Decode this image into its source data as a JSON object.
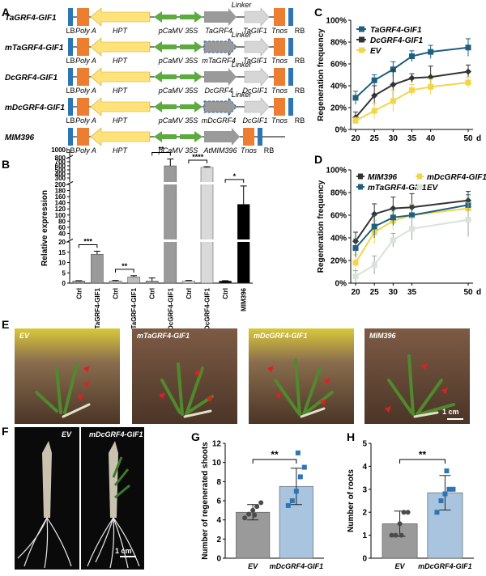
{
  "panels": {
    "A": "A",
    "B": "B",
    "C": "C",
    "D": "D",
    "E": "E",
    "F": "F",
    "G": "G",
    "H": "H"
  },
  "constructs": [
    {
      "name": "TaGRF4-GIF1",
      "has_linker": true,
      "labels": {
        "lb": "LB",
        "polya": "Poly A",
        "hpt": "HPT",
        "p35s": "pCaMV 35S",
        "grf": "TaGRF4",
        "gif": "TaGIF1",
        "tnos": "Tnos",
        "rb": "RB",
        "linker": "Linker"
      }
    },
    {
      "name": "mTaGRF4-GIF1",
      "has_linker": true,
      "labels": {
        "lb": "LB",
        "polya": "Poly A",
        "hpt": "HPT",
        "p35s": "pCaMV 35S",
        "grf": "mTaGRF4",
        "gif": "TaGIF1",
        "tnos": "Tnos",
        "rb": "RB",
        "linker": "Linker"
      }
    },
    {
      "name": "DcGRF4-GIF1",
      "has_linker": true,
      "labels": {
        "lb": "LB",
        "polya": "Poly A",
        "hpt": "HPT",
        "p35s": "pCaMV 35S",
        "grf": "DcGRF4",
        "gif": "DcGIF1",
        "tnos": "Tnos",
        "rb": "RB",
        "linker": "Linker"
      }
    },
    {
      "name": "mDcGRF4-GIF1",
      "has_linker": true,
      "labels": {
        "lb": "LB",
        "polya": "Poly A",
        "hpt": "HPT",
        "p35s": "pCaMV 35S",
        "grf": "mDcGRF4",
        "gif": "DcGIF1",
        "tnos": "Tnos",
        "rb": "RB",
        "linker": "Linker"
      }
    },
    {
      "name": "MIM396",
      "has_linker": false,
      "labels": {
        "lb": "LB",
        "polya": "Poly A",
        "hpt": "HPT",
        "p35s": "pCaMV 35S",
        "mim": "AtMIM396",
        "tnos": "Tnos",
        "rb": "RB"
      }
    }
  ],
  "colors": {
    "lb": "#2e75b6",
    "polya": "#ed7d31",
    "hpt": "#ffe27a",
    "p35s": "#5daa3f",
    "grf": "#9a9a9a",
    "gif": "#d6d6d6",
    "tnos": "#ed7d31",
    "rb": "#2e75b6"
  },
  "chart_data": [
    {
      "panel": "B",
      "type": "bar",
      "ylabel": "Relative expression",
      "yticks": [
        "0",
        "5",
        "10",
        "15",
        "20",
        "40",
        "60",
        "80",
        "100",
        "120",
        "140",
        "160",
        "180",
        "200",
        "300",
        "400",
        "500",
        "600",
        "700",
        "800",
        "1000"
      ],
      "categories": [
        "Ctrl",
        "TaGRF4-GIF1",
        "Ctrl",
        "mTaGRF4-GIF1",
        "Ctrl",
        "DcGRF4-GIF1",
        "Ctrl",
        "mDcGRF4-GIF1",
        "Ctrl",
        "MIM396"
      ],
      "values": [
        1,
        14,
        1,
        3,
        1,
        600,
        1,
        560,
        1,
        135
      ],
      "errors": [
        0.2,
        1.5,
        0.3,
        0.6,
        1.5,
        170,
        0.3,
        20,
        0.2,
        60
      ],
      "fills": [
        "#9a9a9a",
        "#9a9a9a",
        "#bdbdbd",
        "#bdbdbd",
        "#9a9a9a",
        "#9a9a9a",
        "#d9d9d9",
        "#d9d9d9",
        "#000000",
        "#000000"
      ],
      "significance": [
        {
          "pair": [
            0,
            1
          ],
          "label": "***"
        },
        {
          "pair": [
            2,
            3
          ],
          "label": "**"
        },
        {
          "pair": [
            4,
            5
          ],
          "label": "**"
        },
        {
          "pair": [
            6,
            7
          ],
          "label": "****"
        },
        {
          "pair": [
            8,
            9
          ],
          "label": "*"
        }
      ]
    },
    {
      "panel": "C",
      "type": "line",
      "ylabel": "Regeneration frequency",
      "x_unit": "d",
      "x": [
        20,
        25,
        30,
        35,
        40,
        50
      ],
      "xticks": [
        "20",
        "25",
        "30",
        "35",
        "40",
        "50"
      ],
      "yticks": [
        "0%",
        "20%",
        "40%",
        "60%",
        "80%",
        "100%"
      ],
      "ylim": [
        0,
        100
      ],
      "legend": "top-left",
      "series": [
        {
          "name": "TaGRF4-GIF1",
          "color": "#1f5f7f",
          "values": [
            29,
            45,
            55,
            67,
            71,
            75
          ],
          "err": [
            6,
            5,
            7,
            5,
            6,
            8
          ]
        },
        {
          "name": "DcGRF4-GIF1",
          "color": "#333333",
          "values": [
            11,
            31,
            41,
            47,
            48,
            53
          ],
          "err": [
            5,
            9,
            14,
            4,
            10,
            6
          ]
        },
        {
          "name": "EV",
          "color": "#f2d64a",
          "values": [
            8,
            17,
            26,
            36,
            39,
            43
          ],
          "err": [
            3,
            7,
            10,
            5,
            7,
            5
          ]
        }
      ]
    },
    {
      "panel": "D",
      "type": "line",
      "ylabel": "Regeneration frequency",
      "x_unit": "d",
      "x": [
        20,
        25,
        30,
        35,
        50
      ],
      "xticks": [
        "20",
        "25",
        "30",
        "35",
        "50"
      ],
      "yticks": [
        "0%",
        "20%",
        "40%",
        "60%",
        "80%",
        "100%"
      ],
      "ylim": [
        0,
        100
      ],
      "legend": "top",
      "series": [
        {
          "name": "MIM396",
          "color": "#333333",
          "values": [
            37,
            61,
            66,
            67,
            73
          ],
          "err": [
            8,
            9,
            10,
            12,
            8
          ]
        },
        {
          "name": "mDcGRF4-GIF1",
          "color": "#f2d64a",
          "values": [
            18,
            45,
            55,
            60,
            66
          ],
          "err": [
            7,
            10,
            8,
            10,
            10
          ]
        },
        {
          "name": "mTaGRF4-GIF1",
          "color": "#1f5f7f",
          "values": [
            31,
            50,
            58,
            60,
            69
          ],
          "err": [
            8,
            10,
            7,
            9,
            9
          ]
        },
        {
          "name": "EV",
          "color": "#d8e3da",
          "values": [
            6,
            16,
            38,
            48,
            56
          ],
          "err": [
            5,
            8,
            6,
            10,
            15
          ]
        }
      ]
    },
    {
      "panel": "G",
      "type": "bar",
      "ylabel": "Number of regenerated shoots",
      "yticks": [
        "0",
        "2",
        "4",
        "6",
        "8",
        "10",
        "12"
      ],
      "ylim": [
        0,
        12
      ],
      "categories": [
        "EV",
        "mDcGRF4-GIF1"
      ],
      "values": [
        4.8,
        7.5
      ],
      "errors": [
        0.8,
        1.9
      ],
      "fills": [
        "#9a9a9a",
        "#a9c4de"
      ],
      "point_colors": [
        "#4a4a4a",
        "#2e75b6"
      ],
      "points": [
        [
          4.2,
          4.6,
          5.0,
          5.4,
          5.8,
          4.5
        ],
        [
          5.5,
          6.0,
          7.0,
          8.5,
          9.5,
          11.0
        ]
      ],
      "significance": "**"
    },
    {
      "panel": "H",
      "type": "bar",
      "ylabel": "Number of roots",
      "yticks": [
        "0",
        "1",
        "2",
        "3",
        "4",
        "5"
      ],
      "ylim": [
        0,
        5
      ],
      "categories": [
        "EV",
        "mDcGRF4-GIF1"
      ],
      "values": [
        1.5,
        2.85
      ],
      "errors": [
        0.55,
        0.75
      ],
      "fills": [
        "#9a9a9a",
        "#a9c4de"
      ],
      "point_colors": [
        "#4a4a4a",
        "#2e75b6"
      ],
      "points": [
        [
          1.0,
          1.0,
          1.5,
          2.0,
          2.0,
          1.0
        ],
        [
          2.0,
          2.5,
          2.8,
          3.0,
          3.0,
          3.8
        ]
      ],
      "significance": "**"
    }
  ],
  "photos_E": [
    "EV",
    "mTaGRF4-GIF1",
    "mDcGRF4-GIF1",
    "MIM396"
  ],
  "scale_E": "1 cm",
  "photos_F": [
    "EV",
    "mDcGRF4-GIF1"
  ],
  "scale_F": "1 cm"
}
